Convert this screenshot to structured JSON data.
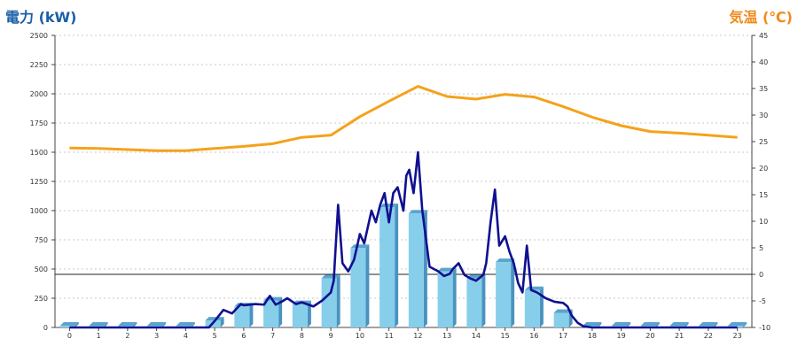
{
  "chart_data": {
    "type": "bar",
    "y_left_label": "電力 (kW)",
    "y_right_label": "気温 (℃)",
    "ylim_left": [
      0,
      2500
    ],
    "ylim_right": [
      -10,
      45
    ],
    "y_left_ticks": [
      0,
      250,
      500,
      750,
      1000,
      1250,
      1500,
      1750,
      2000,
      2250,
      2500
    ],
    "y_right_ticks": [
      -10,
      -5,
      0,
      5,
      10,
      15,
      20,
      25,
      30,
      35,
      40,
      45
    ],
    "categories": [
      "0",
      "1",
      "2",
      "3",
      "4",
      "5",
      "6",
      "7",
      "8",
      "9",
      "10",
      "11",
      "12",
      "13",
      "14",
      "15",
      "16",
      "17",
      "18",
      "19",
      "20",
      "21",
      "22",
      "23"
    ],
    "grid": true,
    "reference_line_value": 0,
    "series": [
      {
        "kind": "bar",
        "axis": "left",
        "color": "#87ceeb",
        "values": [
          15,
          15,
          15,
          15,
          15,
          60,
          180,
          230,
          200,
          420,
          680,
          1030,
          975,
          480,
          420,
          560,
          320,
          125,
          15,
          15,
          15,
          15,
          15,
          15
        ]
      },
      {
        "kind": "line",
        "axis": "right",
        "color": "#f5a21b",
        "values": [
          23.8,
          23.7,
          23.5,
          23.3,
          23.3,
          23.7,
          24.1,
          24.6,
          25.8,
          26.2,
          29.7,
          32.6,
          35.4,
          33.5,
          33.0,
          33.9,
          33.4,
          31.6,
          29.6,
          28.0,
          26.9,
          26.6,
          26.2,
          25.8
        ]
      },
      {
        "kind": "line",
        "axis": "left",
        "color": "#101090",
        "x": [
          0,
          1,
          2,
          3,
          4,
          4.8,
          5,
          5.3,
          5.6,
          5.9,
          6,
          6.4,
          6.7,
          6.9,
          7.1,
          7.3,
          7.5,
          7.8,
          8,
          8.4,
          8.7,
          9,
          9.1,
          9.25,
          9.4,
          9.6,
          9.8,
          10,
          10.15,
          10.4,
          10.55,
          10.7,
          10.85,
          11,
          11.15,
          11.3,
          11.5,
          11.6,
          11.7,
          11.85,
          12,
          12.15,
          12.4,
          12.7,
          12.9,
          13.1,
          13.2,
          13.4,
          13.6,
          13.8,
          14,
          14.1,
          14.25,
          14.35,
          14.5,
          14.65,
          14.8,
          15,
          15.15,
          15.3,
          15.45,
          15.6,
          15.75,
          15.9,
          16.1,
          16.4,
          16.7,
          17,
          17.15,
          17.3,
          17.5,
          17.7,
          18,
          19,
          20,
          21,
          22,
          23
        ],
        "values": [
          0,
          0,
          0,
          0,
          0,
          0,
          55,
          150,
          120,
          200,
          190,
          200,
          195,
          270,
          195,
          220,
          250,
          200,
          215,
          180,
          230,
          300,
          400,
          1050,
          550,
          480,
          580,
          800,
          720,
          1000,
          900,
          1050,
          1150,
          900,
          1150,
          1200,
          1000,
          1300,
          1350,
          1150,
          1500,
          1000,
          520,
          480,
          440,
          460,
          500,
          550,
          450,
          420,
          400,
          420,
          450,
          550,
          900,
          1180,
          700,
          780,
          650,
          550,
          380,
          300,
          700,
          320,
          300,
          250,
          220,
          210,
          180,
          100,
          40,
          10,
          0,
          0,
          0,
          0,
          0,
          0
        ]
      }
    ]
  }
}
